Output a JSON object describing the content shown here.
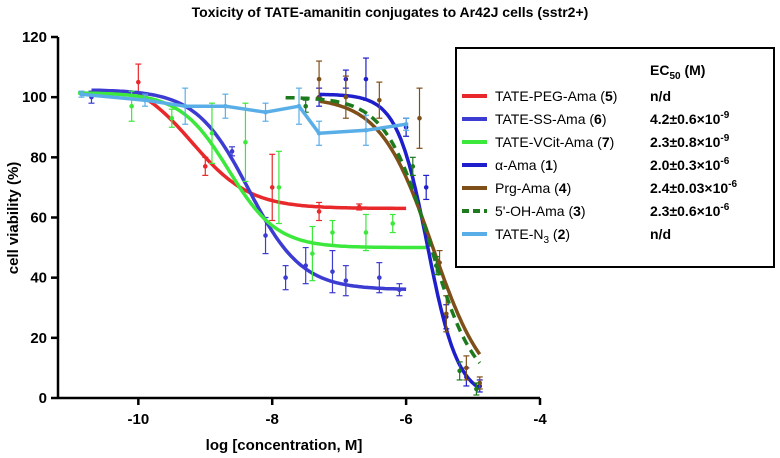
{
  "chart_data": {
    "type": "line",
    "title": "Toxicity of TATE-amanitin conjugates to Ar42J cells (sstr2+)",
    "xlabel": "log [concentration, M]",
    "ylabel": "cell viability (%)",
    "xlim": [
      -11.2,
      -4
    ],
    "ylim": [
      0,
      120
    ],
    "x_ticks": [
      -10,
      -8,
      -6,
      -4
    ],
    "x_tick_labels": [
      "-10",
      "-8",
      "-6",
      "-4"
    ],
    "y_ticks": [
      0,
      20,
      40,
      60,
      80,
      100,
      120
    ],
    "y_tick_labels": [
      "0",
      "20",
      "40",
      "60",
      "80",
      "100",
      "120"
    ],
    "legend": {
      "placement": "top-right",
      "header": {
        "ec": "EC",
        "ec_sub": "50",
        "unit": " (M)"
      }
    },
    "series": [
      {
        "name": "TATE-PEG-Ama",
        "label": "TATE-PEG-Ama (",
        "compound": "5",
        "label_close": ")",
        "ec_main": "n/d",
        "ec_exp": "",
        "color": "#e8282a",
        "dash": false,
        "fit_range": [
          -10,
          -6
        ],
        "fit": {
          "top": 107,
          "bottom": 63,
          "logec": -9.2,
          "hill": -1.0
        },
        "points": [
          {
            "x": -10,
            "y": 105,
            "err": 6
          },
          {
            "x": -9,
            "y": 77,
            "err": 3
          },
          {
            "x": -8,
            "y": 70,
            "err": 11
          },
          {
            "x": -7.3,
            "y": 62,
            "err": 3
          },
          {
            "x": -6.7,
            "y": 63.5,
            "err": 1
          }
        ]
      },
      {
        "name": "TATE-SS-Ama",
        "label": "TATE-SS-Ama (",
        "compound": "6",
        "label_close": ")",
        "ec_main": "4.2±0.6×10",
        "ec_exp": "-9",
        "color": "#3c3cd2",
        "dash": false,
        "fit_range": [
          -10.7,
          -6
        ],
        "fit": {
          "top": 102.5,
          "bottom": 36,
          "logec": -8.35,
          "hill": -1.1
        },
        "points": [
          {
            "x": -10.7,
            "y": 100,
            "err": 2
          },
          {
            "x": -8.6,
            "y": 82,
            "err": 1.5
          },
          {
            "x": -8.1,
            "y": 54,
            "err": 6
          },
          {
            "x": -7.8,
            "y": 40,
            "err": 4
          },
          {
            "x": -7.5,
            "y": 44,
            "err": 6
          },
          {
            "x": -7.1,
            "y": 42,
            "err": 7
          },
          {
            "x": -6.9,
            "y": 39,
            "err": 5
          },
          {
            "x": -6.4,
            "y": 40,
            "err": 5
          },
          {
            "x": -6.1,
            "y": 36,
            "err": 2
          }
        ]
      },
      {
        "name": "TATE-VCit-Ama",
        "label": "TATE-VCit-Ama (",
        "compound": "7",
        "label_close": ")",
        "ec_main": "2.3±0.8×10",
        "ec_exp": "-9",
        "color": "#3ce83c",
        "dash": false,
        "fit_range": [
          -10.9,
          -5.7
        ],
        "fit": {
          "top": 101.5,
          "bottom": 50,
          "logec": -8.65,
          "hill": -1.2
        },
        "points": [
          {
            "x": -10.1,
            "y": 97,
            "err": 5
          },
          {
            "x": -9.5,
            "y": 93,
            "err": 3
          },
          {
            "x": -8.9,
            "y": 88,
            "err": 10
          },
          {
            "x": -8.4,
            "y": 85,
            "err": 13
          },
          {
            "x": -7.9,
            "y": 70,
            "err": 12
          },
          {
            "x": -7.4,
            "y": 48,
            "err": 9
          },
          {
            "x": -7.1,
            "y": 55,
            "err": 4
          },
          {
            "x": -6.6,
            "y": 55,
            "err": 6
          },
          {
            "x": -6.2,
            "y": 58,
            "err": 3
          }
        ]
      },
      {
        "name": "α-Ama",
        "label": "α-Ama (",
        "compound": "1",
        "label_close": ")",
        "ec_main": "2.0±0.3×10",
        "ec_exp": "-6",
        "color": "#1e1ecd",
        "dash": false,
        "fit_range": [
          -7.3,
          -4.9
        ],
        "fit": {
          "top": 101,
          "bottom": 0,
          "logec": -5.68,
          "hill": -1.9
        },
        "points": [
          {
            "x": -7.3,
            "y": 100,
            "err": 3
          },
          {
            "x": -6.9,
            "y": 106,
            "err": 3
          },
          {
            "x": -6.6,
            "y": 106,
            "err": 7
          },
          {
            "x": -6.0,
            "y": 90,
            "err": 3
          },
          {
            "x": -5.7,
            "y": 70,
            "err": 4
          },
          {
            "x": -5.4,
            "y": 27,
            "err": 4
          },
          {
            "x": -5.1,
            "y": 7,
            "err": 3
          },
          {
            "x": -4.9,
            "y": 4,
            "err": 2
          }
        ]
      },
      {
        "name": "Prg-Ama",
        "label": "Prg-Ama (",
        "compound": "4",
        "label_close": ")",
        "ec_main": "2.4±0.03×10",
        "ec_exp": "-6",
        "color": "#7f4f19",
        "dash": false,
        "fit_range": [
          -7.3,
          -4.9
        ],
        "fit": {
          "top": 100,
          "bottom": 0,
          "logec": -5.6,
          "hill": -1.1
        },
        "points": [
          {
            "x": -7.3,
            "y": 106,
            "err": 6
          },
          {
            "x": -6.9,
            "y": 100,
            "err": 7
          },
          {
            "x": -6.4,
            "y": 99,
            "err": 6
          },
          {
            "x": -5.8,
            "y": 93,
            "err": 10
          },
          {
            "x": -5.5,
            "y": 45,
            "err": 4
          },
          {
            "x": -5.4,
            "y": 28,
            "err": 6
          },
          {
            "x": -5.1,
            "y": 10,
            "err": 4
          },
          {
            "x": -4.9,
            "y": 5,
            "err": 2
          }
        ]
      },
      {
        "name": "5'-OH-Ama",
        "label": "5'-OH-Ama (",
        "compound": "3",
        "label_close": ")",
        "ec_main": "2.3±0.6×10",
        "ec_exp": "-6",
        "color": "#1d7a1d",
        "dash": true,
        "fit_range": [
          -7.8,
          -4.9
        ],
        "fit": {
          "top": 100,
          "bottom": 2,
          "logec": -5.64,
          "hill": -1.3
        },
        "points": [
          {
            "x": -7.5,
            "y": 97,
            "err": 2
          },
          {
            "x": -5.9,
            "y": 77,
            "err": 3
          },
          {
            "x": -5.55,
            "y": 44,
            "err": 3
          },
          {
            "x": -5.2,
            "y": 9,
            "err": 3
          },
          {
            "x": -4.95,
            "y": 3,
            "err": 2
          }
        ]
      },
      {
        "name": "TATE-N3",
        "label": "TATE-N",
        "label_sub": "3",
        "compound": "2",
        "label_close": ")",
        "ec_main": "n/d",
        "ec_exp": "",
        "color": "#5aaee8",
        "dash": false,
        "connect": true,
        "points": [
          {
            "x": -10.85,
            "y": 101,
            "err": 1
          },
          {
            "x": -9.9,
            "y": 99,
            "err": 2
          },
          {
            "x": -9.3,
            "y": 97,
            "err": 6
          },
          {
            "x": -8.7,
            "y": 97,
            "err": 4
          },
          {
            "x": -8.1,
            "y": 95,
            "err": 3
          },
          {
            "x": -7.6,
            "y": 97,
            "err": 6
          },
          {
            "x": -7.3,
            "y": 88,
            "err": 4
          },
          {
            "x": -6.6,
            "y": 89,
            "err": 5
          },
          {
            "x": -6.0,
            "y": 91,
            "err": 2
          }
        ]
      }
    ]
  }
}
